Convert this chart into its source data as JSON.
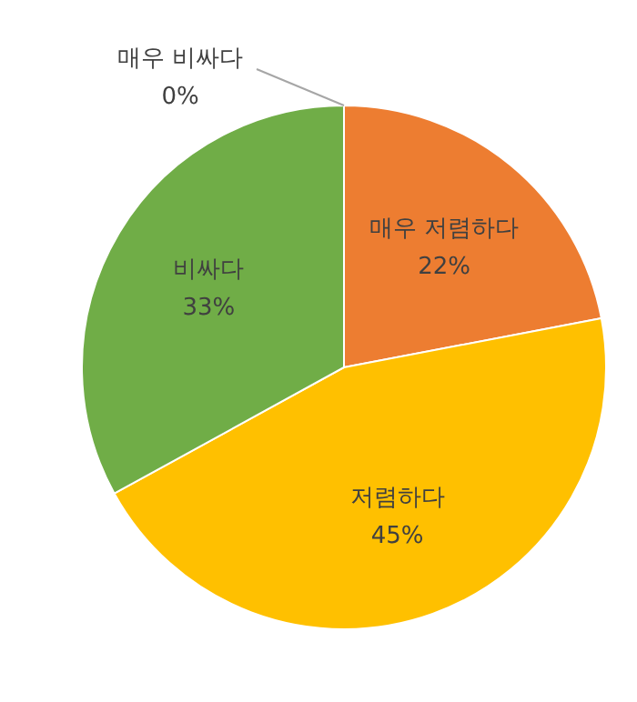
{
  "chart_data": {
    "type": "pie",
    "categories": [
      "매우 저렴하다",
      "저렴하다",
      "비싸다",
      "매우 비싸다"
    ],
    "values": [
      22,
      45,
      33,
      0
    ],
    "value_labels": [
      "22%",
      "45%",
      "33%",
      "0%"
    ],
    "colors": [
      "#ed7d31",
      "#ffc000",
      "#70ad47",
      "#4472c4"
    ]
  }
}
